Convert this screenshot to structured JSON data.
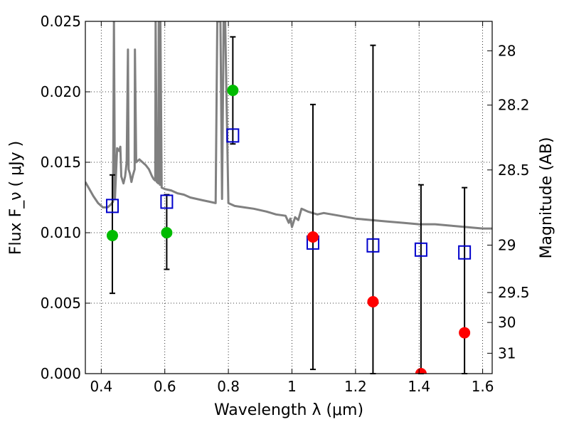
{
  "chart_data": {
    "type": "scatter",
    "xlabel": "Wavelength  λ (μm)",
    "ylabel": "Flux  F_ν  ( μJy )",
    "y2label": "Magnitude (AB)",
    "xlim": [
      0.35,
      1.63
    ],
    "ylim": [
      0.0,
      0.025
    ],
    "grid": true,
    "x_ticks": [
      {
        "value": 0.4,
        "label": "0.4"
      },
      {
        "value": 0.6,
        "label": "0.6"
      },
      {
        "value": 0.8,
        "label": "0.8"
      },
      {
        "value": 1.0,
        "label": "1"
      },
      {
        "value": 1.2,
        "label": "1.2"
      },
      {
        "value": 1.4,
        "label": "1.4"
      },
      {
        "value": 1.6,
        "label": "1.6"
      }
    ],
    "y_ticks": [
      {
        "value": 0.0,
        "label": "0.000"
      },
      {
        "value": 0.005,
        "label": "0.005"
      },
      {
        "value": 0.01,
        "label": "0.010"
      },
      {
        "value": 0.015,
        "label": "0.015"
      },
      {
        "value": 0.02,
        "label": "0.020"
      },
      {
        "value": 0.025,
        "label": "0.025"
      }
    ],
    "y2_ticks": [
      {
        "mag": 28,
        "label": "28"
      },
      {
        "mag": 28.2,
        "label": "28.2"
      },
      {
        "mag": 28.5,
        "label": "28.5"
      },
      {
        "mag": 29,
        "label": "29"
      },
      {
        "mag": 29.5,
        "label": "29.5"
      },
      {
        "mag": 30,
        "label": "30"
      },
      {
        "mag": 31,
        "label": "31"
      }
    ],
    "colors": {
      "model": "#808080",
      "observed_detected": "#00bb00",
      "observed_upper": "#ff0000",
      "model_photometry": "#0000cc",
      "errorbar": "#000000"
    },
    "observed_flux": [
      {
        "x": 0.435,
        "y": 0.0098,
        "yerr_low": 0.0057,
        "yerr_high": 0.0141,
        "detected": true
      },
      {
        "x": 0.606,
        "y": 0.01,
        "yerr_low": 0.0074,
        "yerr_high": 0.0127,
        "detected": true
      },
      {
        "x": 0.814,
        "y": 0.0201,
        "yerr_low": 0.0163,
        "yerr_high": 0.0239,
        "detected": true
      },
      {
        "x": 1.066,
        "y": 0.0097,
        "yerr_low": 0.0003,
        "yerr_high": 0.0191,
        "detected": false
      },
      {
        "x": 1.255,
        "y": 0.0051,
        "yerr_low": 0.0,
        "yerr_high": 0.0233,
        "detected": false
      },
      {
        "x": 1.406,
        "y": 0.0,
        "yerr_low": 0.0,
        "yerr_high": 0.0134,
        "detected": false
      },
      {
        "x": 1.543,
        "y": 0.0029,
        "yerr_low": 0.0,
        "yerr_high": 0.0132,
        "detected": false
      }
    ],
    "model_photometry": [
      {
        "x": 0.435,
        "y": 0.0119
      },
      {
        "x": 0.606,
        "y": 0.0122
      },
      {
        "x": 0.814,
        "y": 0.0169
      },
      {
        "x": 1.066,
        "y": 0.0093
      },
      {
        "x": 1.255,
        "y": 0.0091
      },
      {
        "x": 1.406,
        "y": 0.0088
      },
      {
        "x": 1.543,
        "y": 0.0086
      }
    ],
    "model_spectrum": {
      "x": [
        0.35,
        0.36,
        0.375,
        0.39,
        0.405,
        0.42,
        0.43,
        0.437,
        0.44,
        0.443,
        0.45,
        0.456,
        0.46,
        0.463,
        0.47,
        0.475,
        0.48,
        0.484,
        0.486,
        0.49,
        0.495,
        0.5,
        0.505,
        0.506,
        0.51,
        0.52,
        0.53,
        0.54,
        0.55,
        0.56,
        0.565,
        0.57,
        0.571,
        0.575,
        0.58,
        0.581,
        0.585,
        0.586,
        0.59,
        0.6,
        0.62,
        0.64,
        0.66,
        0.68,
        0.7,
        0.72,
        0.74,
        0.76,
        0.765,
        0.77,
        0.775,
        0.78,
        0.785,
        0.79,
        0.8,
        0.82,
        0.85,
        0.88,
        0.9,
        0.92,
        0.95,
        0.98,
        0.99,
        0.995,
        1.0,
        1.01,
        1.02,
        1.03,
        1.05,
        1.08,
        1.1,
        1.15,
        1.2,
        1.25,
        1.3,
        1.35,
        1.4,
        1.45,
        1.5,
        1.55,
        1.6,
        1.63
      ],
      "y": [
        0.0136,
        0.0132,
        0.0126,
        0.0121,
        0.0118,
        0.0118,
        0.012,
        0.0122,
        0.025,
        0.0124,
        0.016,
        0.0158,
        0.0161,
        0.014,
        0.0135,
        0.014,
        0.015,
        0.023,
        0.0145,
        0.0142,
        0.0136,
        0.0141,
        0.0145,
        0.023,
        0.015,
        0.0152,
        0.015,
        0.0148,
        0.0145,
        0.014,
        0.0138,
        0.0137,
        0.025,
        0.0136,
        0.0135,
        0.025,
        0.0134,
        0.025,
        0.0132,
        0.0131,
        0.013,
        0.0128,
        0.0127,
        0.0125,
        0.0124,
        0.0123,
        0.0122,
        0.0121,
        0.025,
        0.025,
        0.025,
        0.0124,
        0.025,
        0.025,
        0.0121,
        0.0119,
        0.0118,
        0.0117,
        0.0116,
        0.0115,
        0.0113,
        0.0112,
        0.0107,
        0.011,
        0.0104,
        0.0111,
        0.0109,
        0.0117,
        0.0115,
        0.0113,
        0.0114,
        0.0112,
        0.011,
        0.0109,
        0.0108,
        0.0107,
        0.0106,
        0.0106,
        0.0105,
        0.0104,
        0.0103,
        0.0103
      ]
    }
  }
}
